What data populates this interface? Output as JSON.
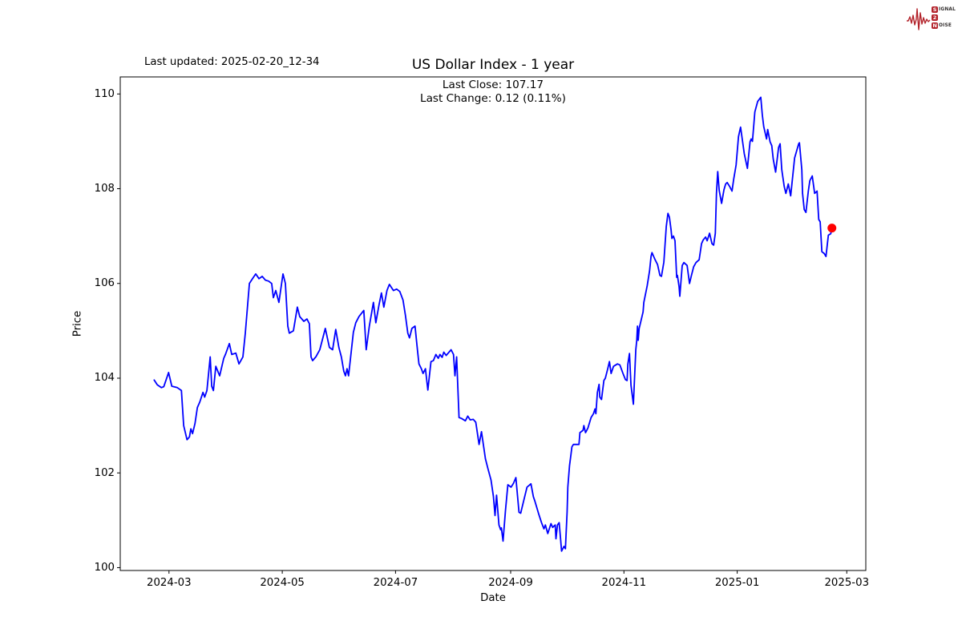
{
  "header": {
    "last_updated": "Last updated: 2025-02-20_12-34"
  },
  "logo": {
    "line1_initial": "S",
    "line1_rest": "IGNAL",
    "line2_initial": "2",
    "line3_initial": "N",
    "line3_rest": "OISE",
    "accent_color": "#b3232b"
  },
  "chart_data": {
    "type": "line",
    "title": "US Dollar Index - 1 year",
    "subtitle_lines": [
      "Last Close: 107.17",
      "Last Change: 0.12 (0.11%)"
    ],
    "xlabel": "Date",
    "ylabel": "Price",
    "last_close": 107.17,
    "last_change": 0.12,
    "last_change_pct": "0.11%",
    "line_color": "#0000ff",
    "marker_color": "#ff0000",
    "grid": false,
    "x_start_date": "2024-02-22",
    "x_unit": "days_since_start",
    "x_domain": [
      -18.25,
      383.25
    ],
    "y_domain": [
      99.94,
      110.36
    ],
    "x_ticks": [
      {
        "day": 8,
        "label": "2024-03"
      },
      {
        "day": 69,
        "label": "2024-05"
      },
      {
        "day": 130,
        "label": "2024-07"
      },
      {
        "day": 192,
        "label": "2024-09"
      },
      {
        "day": 253,
        "label": "2024-11"
      },
      {
        "day": 314,
        "label": "2025-01"
      },
      {
        "day": 373,
        "label": "2025-03"
      }
    ],
    "y_ticks": [
      100,
      102,
      104,
      106,
      108,
      110
    ],
    "series": [
      {
        "name": "US Dollar Index",
        "points": [
          [
            0,
            103.96
          ],
          [
            1.7,
            103.86
          ],
          [
            3.9,
            103.8
          ],
          [
            5.2,
            103.82
          ],
          [
            7.8,
            104.12
          ],
          [
            9.5,
            103.83
          ],
          [
            12.5,
            103.8
          ],
          [
            14.7,
            103.74
          ],
          [
            15.9,
            103.0
          ],
          [
            17.7,
            102.7
          ],
          [
            19,
            102.76
          ],
          [
            19.8,
            102.93
          ],
          [
            20.7,
            102.83
          ],
          [
            22,
            103.04
          ],
          [
            23.3,
            103.38
          ],
          [
            24.6,
            103.5
          ],
          [
            26.3,
            103.7
          ],
          [
            27.2,
            103.6
          ],
          [
            28.4,
            103.74
          ],
          [
            30.2,
            104.45
          ],
          [
            31,
            103.83
          ],
          [
            31.9,
            103.74
          ],
          [
            33.2,
            104.25
          ],
          [
            35.3,
            104.05
          ],
          [
            37.5,
            104.42
          ],
          [
            38.4,
            104.5
          ],
          [
            40.5,
            104.73
          ],
          [
            41.8,
            104.5
          ],
          [
            44,
            104.53
          ],
          [
            45.7,
            104.3
          ],
          [
            47.8,
            104.45
          ],
          [
            49.1,
            104.95
          ],
          [
            51.3,
            106.0
          ],
          [
            53,
            106.1
          ],
          [
            54.7,
            106.2
          ],
          [
            56.5,
            106.1
          ],
          [
            58.2,
            106.15
          ],
          [
            59.9,
            106.07
          ],
          [
            61.6,
            106.05
          ],
          [
            63.3,
            106.0
          ],
          [
            64.2,
            105.7
          ],
          [
            65.5,
            105.85
          ],
          [
            67.2,
            105.6
          ],
          [
            69.4,
            106.2
          ],
          [
            70.7,
            106.0
          ],
          [
            72,
            105.1
          ],
          [
            72.8,
            104.95
          ],
          [
            75,
            105.0
          ],
          [
            77.1,
            105.5
          ],
          [
            78.4,
            105.3
          ],
          [
            80.6,
            105.2
          ],
          [
            82.3,
            105.25
          ],
          [
            83.6,
            105.15
          ],
          [
            84.5,
            104.45
          ],
          [
            85.3,
            104.37
          ],
          [
            87.1,
            104.45
          ],
          [
            89.2,
            104.6
          ],
          [
            92.2,
            105.05
          ],
          [
            94.4,
            104.65
          ],
          [
            96.1,
            104.6
          ],
          [
            97.8,
            105.03
          ],
          [
            99.5,
            104.65
          ],
          [
            100.8,
            104.45
          ],
          [
            102.1,
            104.15
          ],
          [
            103,
            104.05
          ],
          [
            103.9,
            104.2
          ],
          [
            104.7,
            104.05
          ],
          [
            107.3,
            104.97
          ],
          [
            108.6,
            105.17
          ],
          [
            110.3,
            105.3
          ],
          [
            112.9,
            105.43
          ],
          [
            114.2,
            104.6
          ],
          [
            115.9,
            105.1
          ],
          [
            118.1,
            105.6
          ],
          [
            119.4,
            105.17
          ],
          [
            121.1,
            105.55
          ],
          [
            122.4,
            105.8
          ],
          [
            123.7,
            105.5
          ],
          [
            125.4,
            105.85
          ],
          [
            126.7,
            105.98
          ],
          [
            128.9,
            105.85
          ],
          [
            130.6,
            105.88
          ],
          [
            132.3,
            105.83
          ],
          [
            134,
            105.65
          ],
          [
            135.3,
            105.33
          ],
          [
            136.6,
            104.95
          ],
          [
            137.5,
            104.85
          ],
          [
            138.8,
            105.05
          ],
          [
            140.5,
            105.1
          ],
          [
            141.8,
            104.6
          ],
          [
            142.6,
            104.3
          ],
          [
            143.9,
            104.2
          ],
          [
            144.8,
            104.1
          ],
          [
            146.1,
            104.2
          ],
          [
            147.4,
            103.75
          ],
          [
            149.1,
            104.35
          ],
          [
            150.4,
            104.37
          ],
          [
            151.7,
            104.5
          ],
          [
            153,
            104.42
          ],
          [
            153.9,
            104.5
          ],
          [
            155.1,
            104.44
          ],
          [
            156,
            104.55
          ],
          [
            157.3,
            104.48
          ],
          [
            159.9,
            104.6
          ],
          [
            161.2,
            104.5
          ],
          [
            162,
            104.05
          ],
          [
            162.9,
            104.45
          ],
          [
            164.2,
            103.17
          ],
          [
            165.5,
            103.15
          ],
          [
            167.6,
            103.1
          ],
          [
            168.9,
            103.2
          ],
          [
            170.2,
            103.12
          ],
          [
            171.9,
            103.13
          ],
          [
            173.2,
            103.07
          ],
          [
            175,
            102.6
          ],
          [
            176.3,
            102.87
          ],
          [
            178.4,
            102.3
          ],
          [
            179.7,
            102.1
          ],
          [
            181.4,
            101.85
          ],
          [
            182.7,
            101.5
          ],
          [
            183.6,
            101.1
          ],
          [
            184.4,
            101.53
          ],
          [
            185.7,
            100.9
          ],
          [
            186.6,
            100.8
          ],
          [
            187,
            100.84
          ],
          [
            187.9,
            100.56
          ],
          [
            189.2,
            101.2
          ],
          [
            190.5,
            101.75
          ],
          [
            192.2,
            101.7
          ],
          [
            193.5,
            101.78
          ],
          [
            194.8,
            101.9
          ],
          [
            196.5,
            101.17
          ],
          [
            197.4,
            101.15
          ],
          [
            199.1,
            101.43
          ],
          [
            200.8,
            101.7
          ],
          [
            202.9,
            101.77
          ],
          [
            204.2,
            101.5
          ],
          [
            205.1,
            101.4
          ],
          [
            207.2,
            101.12
          ],
          [
            208.6,
            100.95
          ],
          [
            209.9,
            100.82
          ],
          [
            210.7,
            100.9
          ],
          [
            212,
            100.72
          ],
          [
            213.7,
            100.93
          ],
          [
            214.6,
            100.85
          ],
          [
            216,
            100.9
          ],
          [
            216.4,
            100.61
          ],
          [
            217.2,
            100.9
          ],
          [
            218.1,
            100.95
          ],
          [
            218.9,
            100.6
          ],
          [
            219.4,
            100.35
          ],
          [
            220.7,
            100.45
          ],
          [
            221.5,
            100.4
          ],
          [
            222.4,
            101.17
          ],
          [
            222.8,
            101.7
          ],
          [
            223.7,
            102.15
          ],
          [
            224.5,
            102.4
          ],
          [
            225,
            102.55
          ],
          [
            225.8,
            102.6
          ],
          [
            228.8,
            102.6
          ],
          [
            229.3,
            102.85
          ],
          [
            231,
            102.9
          ],
          [
            231.4,
            103.0
          ],
          [
            232.3,
            102.85
          ],
          [
            233.6,
            102.95
          ],
          [
            235.3,
            103.17
          ],
          [
            236.6,
            103.25
          ],
          [
            237.4,
            103.35
          ],
          [
            237.9,
            103.25
          ],
          [
            238.7,
            103.7
          ],
          [
            239.6,
            103.87
          ],
          [
            240,
            103.6
          ],
          [
            240.9,
            103.55
          ],
          [
            242.2,
            103.95
          ],
          [
            243,
            104.0
          ],
          [
            244.3,
            104.2
          ],
          [
            245.2,
            104.35
          ],
          [
            246.1,
            104.1
          ],
          [
            247.4,
            104.25
          ],
          [
            249.5,
            104.3
          ],
          [
            250.8,
            104.28
          ],
          [
            252.5,
            104.1
          ],
          [
            253.8,
            103.97
          ],
          [
            254.7,
            103.95
          ],
          [
            255.1,
            104.3
          ],
          [
            256,
            104.52
          ],
          [
            256.8,
            103.85
          ],
          [
            258.1,
            103.45
          ],
          [
            259.4,
            104.6
          ],
          [
            259.9,
            104.8
          ],
          [
            260.3,
            105.1
          ],
          [
            260.7,
            104.8
          ],
          [
            261.2,
            105.05
          ],
          [
            263.3,
            105.4
          ],
          [
            263.7,
            105.6
          ],
          [
            265.5,
            105.95
          ],
          [
            266.8,
            106.27
          ],
          [
            267.6,
            106.57
          ],
          [
            268.1,
            106.65
          ],
          [
            269.8,
            106.5
          ],
          [
            271.1,
            106.4
          ],
          [
            272.4,
            106.17
          ],
          [
            273.2,
            106.15
          ],
          [
            274.5,
            106.45
          ],
          [
            275.8,
            107.2
          ],
          [
            276.7,
            107.48
          ],
          [
            277.5,
            107.4
          ],
          [
            278.4,
            107.13
          ],
          [
            278.8,
            106.95
          ],
          [
            279.7,
            107.0
          ],
          [
            280.5,
            106.9
          ],
          [
            281.4,
            106.13
          ],
          [
            281.8,
            106.17
          ],
          [
            282.7,
            105.93
          ],
          [
            283.1,
            105.73
          ],
          [
            284.4,
            106.38
          ],
          [
            285.3,
            106.44
          ],
          [
            287,
            106.38
          ],
          [
            288.3,
            106.0
          ],
          [
            289.2,
            106.15
          ],
          [
            290.5,
            106.35
          ],
          [
            291.8,
            106.44
          ],
          [
            293.5,
            106.5
          ],
          [
            294.8,
            106.84
          ],
          [
            295.7,
            106.92
          ],
          [
            297,
            106.98
          ],
          [
            297.8,
            106.9
          ],
          [
            299.1,
            107.06
          ],
          [
            300.4,
            106.84
          ],
          [
            301.3,
            106.81
          ],
          [
            302.2,
            107.06
          ],
          [
            302.8,
            107.9
          ],
          [
            303.5,
            108.36
          ],
          [
            304.3,
            107.97
          ],
          [
            305.6,
            107.69
          ],
          [
            306.9,
            107.98
          ],
          [
            307.8,
            108.1
          ],
          [
            308.6,
            108.13
          ],
          [
            309.9,
            108.05
          ],
          [
            311.2,
            107.95
          ],
          [
            312.1,
            108.2
          ],
          [
            313.4,
            108.5
          ],
          [
            314.7,
            109.1
          ],
          [
            315.8,
            109.3
          ],
          [
            317.8,
            108.74
          ],
          [
            319.5,
            108.43
          ],
          [
            320.9,
            108.99
          ],
          [
            321.5,
            109.05
          ],
          [
            322.2,
            109.0
          ],
          [
            323.5,
            109.62
          ],
          [
            325,
            109.84
          ],
          [
            326.7,
            109.93
          ],
          [
            327.5,
            109.56
          ],
          [
            328.3,
            109.31
          ],
          [
            329.8,
            109.05
          ],
          [
            330.4,
            109.25
          ],
          [
            331.7,
            108.99
          ],
          [
            332.6,
            108.91
          ],
          [
            333.4,
            108.63
          ],
          [
            334.7,
            108.35
          ],
          [
            336.3,
            108.87
          ],
          [
            337.1,
            108.95
          ],
          [
            338,
            108.4
          ],
          [
            339.3,
            108.05
          ],
          [
            340.2,
            107.9
          ],
          [
            341.5,
            108.1
          ],
          [
            342.8,
            107.85
          ],
          [
            344.9,
            108.65
          ],
          [
            347.1,
            108.95
          ],
          [
            347.5,
            108.97
          ],
          [
            348.8,
            108.4
          ],
          [
            349.2,
            107.9
          ],
          [
            350.1,
            107.56
          ],
          [
            351,
            107.5
          ],
          [
            352.3,
            107.95
          ],
          [
            353.1,
            108.17
          ],
          [
            354.4,
            108.27
          ],
          [
            355.7,
            107.9
          ],
          [
            357,
            107.95
          ],
          [
            357.9,
            107.35
          ],
          [
            358.7,
            107.3
          ],
          [
            359.6,
            106.67
          ],
          [
            360.9,
            106.63
          ],
          [
            361.8,
            106.57
          ],
          [
            363.1,
            107.02
          ],
          [
            364.4,
            107.05
          ],
          [
            365,
            107.17
          ]
        ]
      }
    ]
  }
}
